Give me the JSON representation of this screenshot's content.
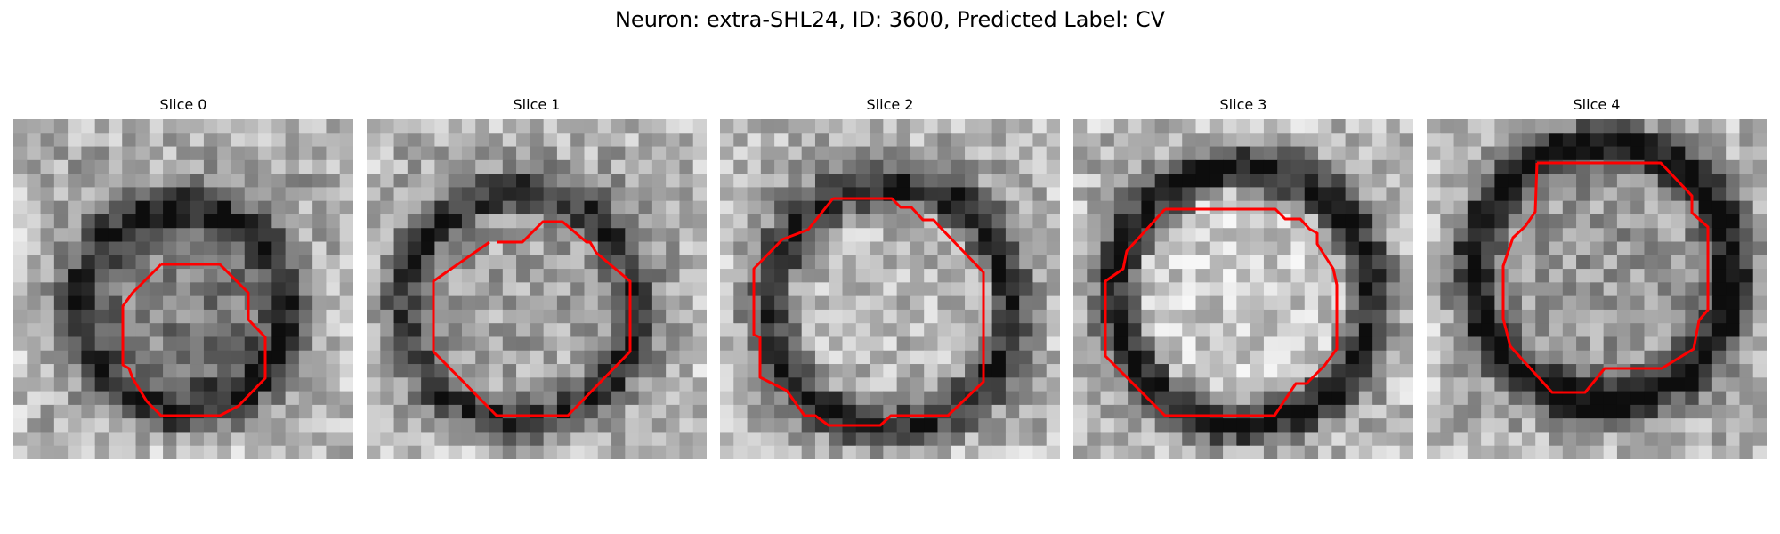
{
  "figure": {
    "title": "Neuron: extra-SHL24, ID: 3600, Predicted Label: CV",
    "contour_color": "#ff0000",
    "colormap": "gray",
    "grid_size": 25,
    "panels": [
      {
        "title": "Slice 0"
      },
      {
        "title": "Slice 1"
      },
      {
        "title": "Slice 2"
      },
      {
        "title": "Slice 3"
      },
      {
        "title": "Slice 4"
      }
    ]
  }
}
